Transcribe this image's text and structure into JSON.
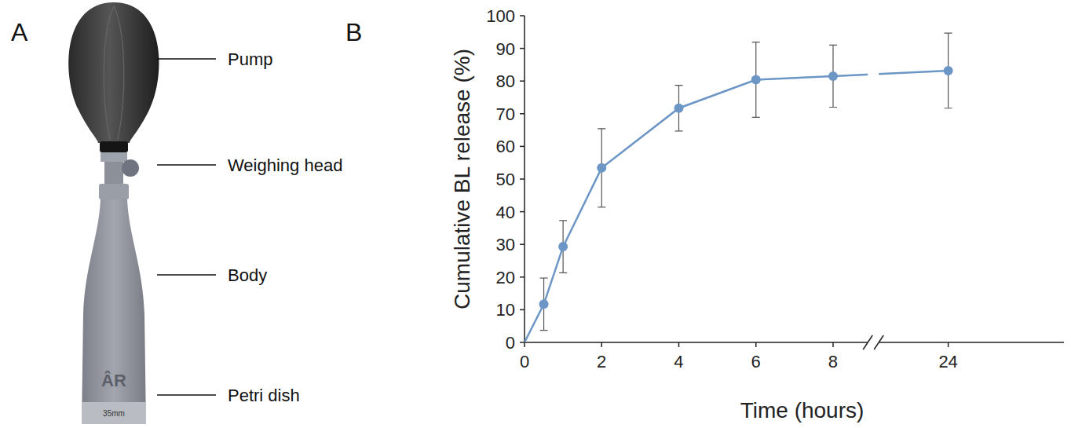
{
  "panel_labels": [
    "A",
    "B"
  ],
  "device": {
    "parts": [
      "Pump",
      "Weighing head",
      "Body",
      "Petri dish"
    ],
    "logo": "ÂR",
    "dish_text": "35mm"
  },
  "chart_data": {
    "type": "line",
    "x_label": "Time (hours)",
    "y_label": "Cumulative BL release (%)",
    "x": [
      0,
      0.5,
      1,
      2,
      4,
      6,
      8,
      24
    ],
    "x_break": [
      8.9,
      22.2
    ],
    "xlim": [
      0,
      27
    ],
    "xticks": [
      0,
      2,
      4,
      6,
      8,
      24
    ],
    "ylim": [
      0,
      100
    ],
    "yticks": [
      0,
      10,
      20,
      30,
      40,
      50,
      60,
      70,
      80,
      90,
      100
    ],
    "grid": false,
    "series": [
      {
        "color": "#6b96c5",
        "marker": "circle",
        "values": [
          0,
          11.7,
          29.3,
          53.4,
          71.7,
          80.4,
          81.5,
          83.2
        ],
        "errors": [
          null,
          8,
          8,
          12,
          7,
          11.5,
          9.5,
          11.5
        ]
      }
    ]
  }
}
